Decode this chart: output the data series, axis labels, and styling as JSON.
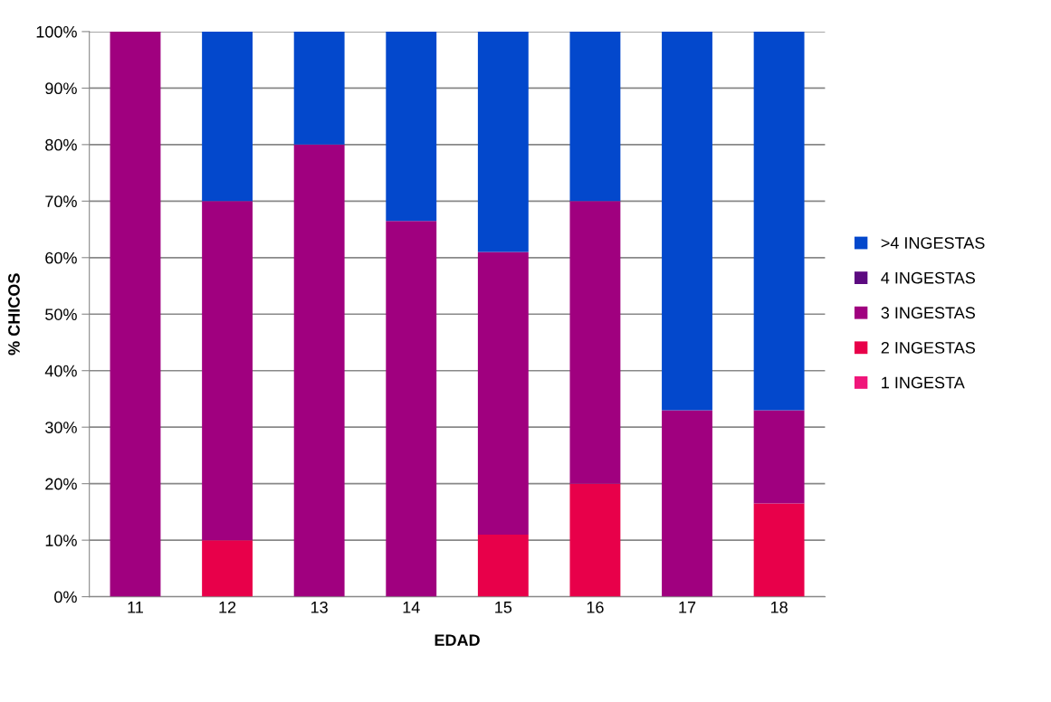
{
  "chart_data": {
    "type": "bar",
    "stacked": true,
    "xlabel": "EDAD",
    "ylabel": "% CHICOS",
    "categories": [
      "11",
      "12",
      "13",
      "14",
      "15",
      "16",
      "17",
      "18"
    ],
    "series": [
      {
        "name": "1 INGESTA",
        "color": "#f0167a",
        "values": [
          0,
          0,
          0,
          0,
          0,
          0,
          0,
          0
        ]
      },
      {
        "name": "2 INGESTAS",
        "color": "#e8004a",
        "values": [
          0,
          10,
          0,
          0,
          11,
          20,
          0,
          16.5
        ]
      },
      {
        "name": "3 INGESTAS",
        "color": "#a0007f",
        "values": [
          100,
          60,
          80,
          66.5,
          50,
          50,
          33,
          16.5
        ]
      },
      {
        "name": "4 INGESTAS",
        "color": "#5c0a80",
        "values": [
          0,
          0,
          0,
          0,
          0,
          0,
          0,
          0
        ]
      },
      {
        "name": ">4 INGESTAS",
        "color": "#0348cc",
        "values": [
          0,
          30,
          20,
          33.5,
          39,
          30,
          67,
          67
        ]
      }
    ],
    "ylim": [
      0,
      100
    ],
    "yticks": [
      {
        "value": 0,
        "label": "0%"
      },
      {
        "value": 10,
        "label": "10%"
      },
      {
        "value": 20,
        "label": "20%"
      },
      {
        "value": 30,
        "label": "30%"
      },
      {
        "value": 40,
        "label": "40%"
      },
      {
        "value": 50,
        "label": "50%"
      },
      {
        "value": 60,
        "label": "60%"
      },
      {
        "value": 70,
        "label": "70%"
      },
      {
        "value": 80,
        "label": "80%"
      },
      {
        "value": 90,
        "label": "90%"
      },
      {
        "value": 100,
        "label": "100%"
      }
    ],
    "grid": "y",
    "legend": "right"
  }
}
